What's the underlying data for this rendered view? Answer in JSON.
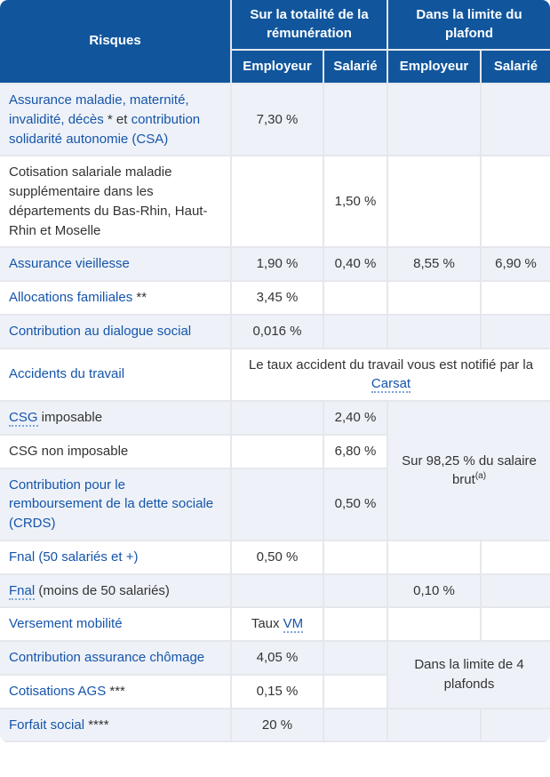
{
  "colors": {
    "header_bg": "#11569d",
    "header_text": "#ffffff",
    "link_blue": "#1554ab",
    "body_text": "#333333",
    "row_shade_bg": "#eef2f8",
    "row_white_bg": "#ffffff",
    "grid_line": "#e5e7ec"
  },
  "table": {
    "header": {
      "risques_label": "Risques",
      "groups": [
        {
          "label": "Sur la totalité de la rémunération",
          "subcols": [
            "Employeur",
            "Salarié"
          ]
        },
        {
          "label": "Dans la limite du plafond",
          "subcols": [
            "Employeur",
            "Salarié"
          ]
        }
      ]
    },
    "rows": [
      {
        "label_parts": [
          {
            "t": "Assurance maladie, maternité, invalidité, décès",
            "s": "link"
          },
          {
            "t": " * et ",
            "s": "plain"
          },
          {
            "t": "contribution solidarité autonomie (CSA)",
            "s": "link"
          }
        ],
        "cells": [
          {
            "parts": [
              {
                "t": "7,30 %"
              }
            ]
          },
          {
            "parts": []
          },
          {
            "parts": []
          },
          {
            "parts": []
          }
        ]
      },
      {
        "label_parts": [
          {
            "t": "Cotisation salariale maladie supplémentaire dans les départements du Bas-Rhin, Haut-Rhin et Moselle",
            "s": "plain"
          }
        ],
        "cells": [
          {
            "parts": []
          },
          {
            "parts": [
              {
                "t": "1,50 %"
              }
            ]
          },
          {
            "parts": []
          },
          {
            "parts": []
          }
        ]
      },
      {
        "label_parts": [
          {
            "t": "Assurance vieillesse",
            "s": "link"
          }
        ],
        "cells": [
          {
            "parts": [
              {
                "t": "1,90 %"
              }
            ]
          },
          {
            "parts": [
              {
                "t": "0,40 %"
              }
            ]
          },
          {
            "parts": [
              {
                "t": "8,55 %"
              }
            ]
          },
          {
            "parts": [
              {
                "t": "6,90 %"
              }
            ]
          }
        ]
      },
      {
        "label_parts": [
          {
            "t": "Allocations familiales",
            "s": "link"
          },
          {
            "t": " **",
            "s": "plain"
          }
        ],
        "cells": [
          {
            "parts": [
              {
                "t": "3,45 %"
              }
            ]
          },
          {
            "parts": []
          },
          {
            "parts": []
          },
          {
            "parts": []
          }
        ]
      },
      {
        "label_parts": [
          {
            "t": "Contribution au dialogue social",
            "s": "link"
          }
        ],
        "cells": [
          {
            "parts": [
              {
                "t": "0,016 %"
              }
            ]
          },
          {
            "parts": []
          },
          {
            "parts": []
          },
          {
            "parts": []
          }
        ]
      },
      {
        "label_parts": [
          {
            "t": "Accidents du travail",
            "s": "link"
          }
        ],
        "cells": [
          {
            "colspan": 4,
            "parts": [
              {
                "t": "Le taux accident du travail vous est notifié par la ",
                "s": "plain"
              },
              {
                "t": "Carsat",
                "s": "abbr"
              }
            ]
          }
        ]
      },
      {
        "label_parts": [
          {
            "t": "CSG",
            "s": "abbr"
          },
          {
            "t": " imposable",
            "s": "plain"
          }
        ],
        "cells": [
          {
            "parts": []
          },
          {
            "parts": [
              {
                "t": "2,40 %"
              }
            ]
          },
          {
            "colspan": 2,
            "rowspan": 3,
            "shade": true,
            "parts": [
              {
                "t": "Sur 98,25 % du salaire brut",
                "s": "plain"
              },
              {
                "t": "(a)",
                "s": "sup"
              }
            ]
          }
        ]
      },
      {
        "label_parts": [
          {
            "t": "CSG non imposable",
            "s": "plain"
          }
        ],
        "cells": [
          {
            "parts": []
          },
          {
            "parts": [
              {
                "t": "6,80 %"
              }
            ]
          }
        ]
      },
      {
        "label_parts": [
          {
            "t": "Contribution pour le remboursement de la dette sociale (CRDS)",
            "s": "link"
          }
        ],
        "cells": [
          {
            "parts": []
          },
          {
            "parts": [
              {
                "t": "0,50 %"
              }
            ]
          }
        ]
      },
      {
        "label_parts": [
          {
            "t": "Fnal (50 salariés et +)",
            "s": "link"
          }
        ],
        "cells": [
          {
            "parts": [
              {
                "t": "0,50 %"
              }
            ]
          },
          {
            "parts": []
          },
          {
            "parts": []
          },
          {
            "parts": []
          }
        ]
      },
      {
        "label_parts": [
          {
            "t": "Fnal",
            "s": "abbr"
          },
          {
            "t": " (moins de 50 salariés)",
            "s": "plain"
          }
        ],
        "cells": [
          {
            "parts": []
          },
          {
            "parts": []
          },
          {
            "parts": [
              {
                "t": "0,10 %"
              }
            ]
          },
          {
            "parts": []
          }
        ]
      },
      {
        "label_parts": [
          {
            "t": "Versement mobilité",
            "s": "link"
          }
        ],
        "cells": [
          {
            "parts": [
              {
                "t": "Taux ",
                "s": "plain"
              },
              {
                "t": "VM",
                "s": "abbr"
              }
            ]
          },
          {
            "parts": []
          },
          {
            "parts": []
          },
          {
            "parts": []
          }
        ]
      },
      {
        "label_parts": [
          {
            "t": "Contribution assurance chômage",
            "s": "link"
          }
        ],
        "cells": [
          {
            "parts": [
              {
                "t": "4,05 %"
              }
            ]
          },
          {
            "parts": []
          },
          {
            "colspan": 2,
            "rowspan": 2,
            "shade": true,
            "parts": [
              {
                "t": "Dans la limite de 4 plafonds",
                "s": "plain"
              }
            ]
          }
        ]
      },
      {
        "label_parts": [
          {
            "t": "Cotisations AGS",
            "s": "link"
          },
          {
            "t": " ***",
            "s": "plain"
          }
        ],
        "cells": [
          {
            "parts": [
              {
                "t": "0,15 %"
              }
            ]
          },
          {
            "parts": []
          }
        ]
      },
      {
        "label_parts": [
          {
            "t": "Forfait social",
            "s": "link"
          },
          {
            "t": " ****",
            "s": "plain"
          }
        ],
        "cells": [
          {
            "parts": [
              {
                "t": "20 %"
              }
            ]
          },
          {
            "parts": []
          },
          {
            "parts": []
          },
          {
            "parts": []
          }
        ]
      }
    ]
  }
}
